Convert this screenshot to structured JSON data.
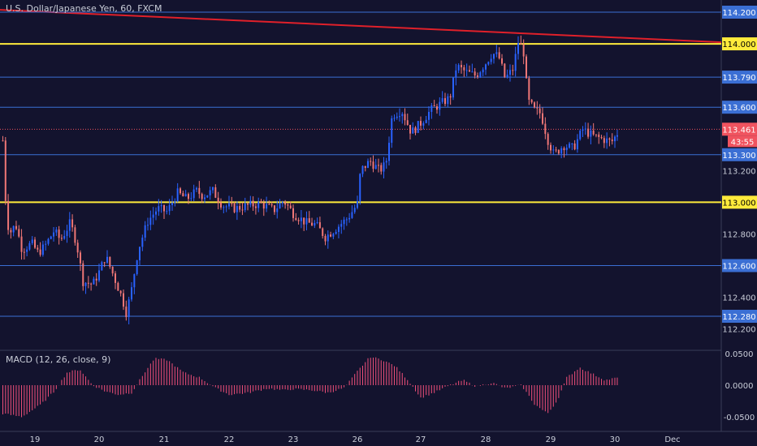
{
  "header": {
    "title": "U.S. Dollar/Japanese Yen, 60, FXCM"
  },
  "macd": {
    "label": "MACD (12, 26, close, 9)"
  },
  "colors": {
    "background": "#13132e",
    "up": "#2962ff",
    "down": "#ef7676",
    "hline": "#3b6fd4",
    "keyline": "#ffeb3b",
    "trendline": "#e0202a",
    "macd_hist": "#ef4f7a",
    "axis_text": "#c9cdd8",
    "price_tag": "#f0535f",
    "level_tag": "#3b6fd4"
  },
  "chart_data": [
    {
      "type": "candlestick",
      "title": "U.S. Dollar/Japanese Yen, 60, FXCM",
      "ylim": [
        112.1,
        114.23
      ],
      "y_ticks": [
        "114.200",
        "114.000",
        "113.790",
        "113.600",
        "113.461",
        "113.300",
        "113.200",
        "113.000",
        "112.800",
        "112.600",
        "112.400",
        "112.280",
        "112.200"
      ],
      "x_ticks": [
        "19",
        "20",
        "21",
        "22",
        "23",
        "26",
        "27",
        "28",
        "29",
        "30",
        "Dec"
      ],
      "horizontal_levels": [
        {
          "price": 114.2,
          "label": "114.200",
          "style": "blue"
        },
        {
          "price": 114.0,
          "label": "114.000",
          "style": "yellow"
        },
        {
          "price": 113.79,
          "label": "113.790",
          "style": "blue"
        },
        {
          "price": 113.6,
          "label": "113.600",
          "style": "blue"
        },
        {
          "price": 113.3,
          "label": "113.300",
          "style": "blue"
        },
        {
          "price": 113.0,
          "label": "113.000",
          "style": "yellow"
        },
        {
          "price": 112.6,
          "label": "112.600",
          "style": "blue"
        },
        {
          "price": 112.28,
          "label": "112.280",
          "style": "blue"
        }
      ],
      "last_price": {
        "value": 113.461,
        "label": "113.461",
        "countdown": "43:55"
      },
      "trendline": {
        "start_price": 114.215,
        "end_price": 114.01
      },
      "close_path": [
        [
          18.5,
          113.39
        ],
        [
          18.55,
          112.95
        ],
        [
          18.6,
          112.8
        ],
        [
          18.7,
          112.86
        ],
        [
          18.8,
          112.7
        ],
        [
          18.95,
          112.74
        ],
        [
          19.05,
          112.68
        ],
        [
          19.15,
          112.72
        ],
        [
          19.3,
          112.82
        ],
        [
          19.4,
          112.76
        ],
        [
          19.55,
          112.87
        ],
        [
          19.65,
          112.74
        ],
        [
          19.75,
          112.5
        ],
        [
          19.9,
          112.48
        ],
        [
          20.0,
          112.56
        ],
        [
          20.1,
          112.66
        ],
        [
          20.2,
          112.56
        ],
        [
          20.35,
          112.4
        ],
        [
          20.42,
          112.3
        ],
        [
          20.5,
          112.45
        ],
        [
          20.6,
          112.7
        ],
        [
          20.75,
          112.88
        ],
        [
          20.9,
          112.96
        ],
        [
          21.05,
          112.94
        ],
        [
          21.2,
          113.06
        ],
        [
          21.35,
          113.02
        ],
        [
          21.5,
          113.07
        ],
        [
          21.6,
          113.04
        ],
        [
          21.75,
          113.07
        ],
        [
          21.9,
          112.98
        ],
        [
          22.1,
          112.96
        ],
        [
          22.3,
          112.98
        ],
        [
          22.5,
          112.99
        ],
        [
          22.7,
          112.95
        ],
        [
          22.85,
          113.01
        ],
        [
          23.0,
          112.93
        ],
        [
          23.2,
          112.87
        ],
        [
          23.35,
          112.86
        ],
        [
          23.5,
          112.78
        ],
        [
          23.65,
          112.83
        ],
        [
          23.85,
          112.9
        ],
        [
          24.0,
          112.99
        ],
        [
          24.05,
          113.2
        ],
        [
          24.2,
          113.26
        ],
        [
          24.35,
          113.2
        ],
        [
          24.45,
          113.24
        ],
        [
          24.55,
          113.55
        ],
        [
          24.7,
          113.58
        ],
        [
          24.85,
          113.44
        ],
        [
          25.0,
          113.5
        ],
        [
          25.15,
          113.58
        ],
        [
          25.3,
          113.62
        ],
        [
          25.45,
          113.66
        ],
        [
          25.55,
          113.86
        ],
        [
          25.7,
          113.82
        ],
        [
          25.85,
          113.8
        ],
        [
          26.0,
          113.88
        ],
        [
          26.1,
          113.94
        ],
        [
          26.2,
          113.92
        ],
        [
          26.3,
          113.78
        ],
        [
          26.42,
          113.84
        ],
        [
          26.5,
          114.01
        ],
        [
          26.58,
          113.96
        ],
        [
          26.65,
          113.64
        ],
        [
          26.75,
          113.58
        ],
        [
          26.85,
          113.56
        ],
        [
          26.95,
          113.4
        ],
        [
          27.05,
          113.3
        ],
        [
          27.2,
          113.36
        ],
        [
          27.35,
          113.34
        ],
        [
          27.5,
          113.46
        ],
        [
          27.65,
          113.42
        ],
        [
          27.8,
          113.4
        ],
        [
          27.95,
          113.38
        ],
        [
          28.05,
          113.44
        ]
      ]
    },
    {
      "type": "bar",
      "title": "MACD (12, 26, close, 9)",
      "ylim": [
        -0.07,
        0.06
      ],
      "y_ticks": [
        "0.0500",
        "0.0000",
        "-0.0500"
      ],
      "histogram_path": [
        [
          18.5,
          -0.045
        ],
        [
          18.8,
          -0.05
        ],
        [
          19.1,
          -0.03
        ],
        [
          19.3,
          -0.01
        ],
        [
          19.5,
          0.02
        ],
        [
          19.7,
          0.025
        ],
        [
          19.9,
          0.0
        ],
        [
          20.1,
          -0.01
        ],
        [
          20.3,
          -0.015
        ],
        [
          20.5,
          -0.012
        ],
        [
          20.7,
          0.02
        ],
        [
          20.85,
          0.042
        ],
        [
          21.05,
          0.04
        ],
        [
          21.3,
          0.02
        ],
        [
          21.55,
          0.012
        ],
        [
          21.8,
          -0.005
        ],
        [
          22.0,
          -0.015
        ],
        [
          22.3,
          -0.012
        ],
        [
          22.6,
          -0.005
        ],
        [
          22.85,
          -0.008
        ],
        [
          23.0,
          -0.006
        ],
        [
          23.3,
          -0.008
        ],
        [
          23.55,
          -0.012
        ],
        [
          23.8,
          -0.004
        ],
        [
          24.0,
          0.022
        ],
        [
          24.2,
          0.045
        ],
        [
          24.4,
          0.04
        ],
        [
          24.6,
          0.03
        ],
        [
          24.8,
          0.008
        ],
        [
          25.0,
          -0.02
        ],
        [
          25.2,
          -0.012
        ],
        [
          25.45,
          0.0
        ],
        [
          25.65,
          0.008
        ],
        [
          25.85,
          -0.002
        ],
        [
          26.1,
          0.004
        ],
        [
          26.3,
          -0.005
        ],
        [
          26.55,
          0.0
        ],
        [
          26.75,
          -0.03
        ],
        [
          26.95,
          -0.045
        ],
        [
          27.1,
          -0.025
        ],
        [
          27.25,
          0.012
        ],
        [
          27.45,
          0.028
        ],
        [
          27.65,
          0.018
        ],
        [
          27.85,
          0.008
        ],
        [
          28.05,
          0.012
        ]
      ]
    }
  ]
}
